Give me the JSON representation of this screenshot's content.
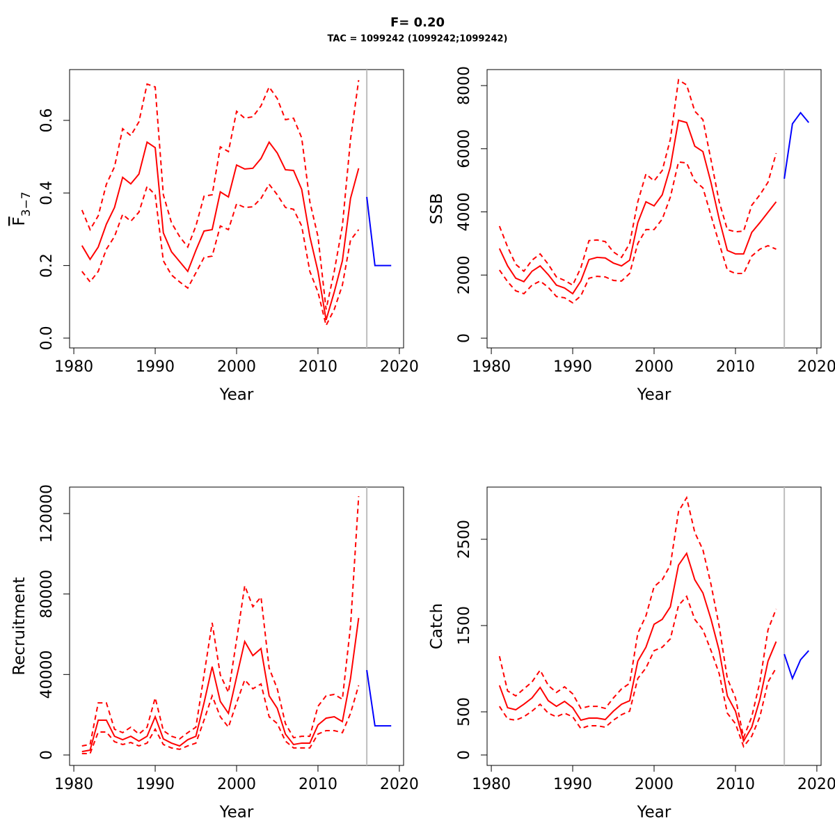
{
  "title": "F= 0.20",
  "subtitle": "TAC = 1099242 (1099242;1099242)",
  "chart_data": [
    {
      "type": "line",
      "xlabel": "Year",
      "ylabel": "F",
      "ylabel_subscript": "3−7",
      "xlim": [
        1979.48,
        2020.52
      ],
      "xticks": [
        1980,
        1990,
        2000,
        2010,
        2020
      ],
      "ylim": [
        -0.027,
        0.74
      ],
      "yticks": [
        {
          "value": 0,
          "label": "0.0"
        },
        0.2,
        0.4,
        0.6
      ],
      "x": [
        1981,
        1982,
        1983,
        1984,
        1985,
        1986,
        1987,
        1988,
        1989,
        1990,
        1991,
        1992,
        1993,
        1994,
        1995,
        1996,
        1997,
        1998,
        1999,
        2000,
        2001,
        2002,
        2003,
        2004,
        2005,
        2006,
        2007,
        2008,
        2009,
        2010,
        2011,
        2012,
        2013,
        2014,
        2015
      ],
      "series": [
        {
          "color": "#ff0000",
          "linestyle": "solid",
          "values": [
            0.255,
            0.217,
            0.251,
            0.314,
            0.36,
            0.443,
            0.425,
            0.452,
            0.54,
            0.525,
            0.29,
            0.238,
            0.211,
            0.184,
            0.242,
            0.295,
            0.299,
            0.403,
            0.389,
            0.477,
            0.466,
            0.468,
            0.495,
            0.54,
            0.51,
            0.464,
            0.462,
            0.41,
            0.28,
            0.184,
            0.05,
            0.127,
            0.213,
            0.385,
            0.468
          ]
        },
        {
          "color": "#ff0000",
          "linestyle": "dashed",
          "values": [
            0.353,
            0.299,
            0.337,
            0.424,
            0.472,
            0.577,
            0.558,
            0.596,
            0.7,
            0.692,
            0.395,
            0.318,
            0.28,
            0.251,
            0.309,
            0.391,
            0.395,
            0.527,
            0.514,
            0.625,
            0.606,
            0.61,
            0.64,
            0.692,
            0.66,
            0.602,
            0.606,
            0.552,
            0.376,
            0.28,
            0.079,
            0.184,
            0.309,
            0.548,
            0.711
          ]
        },
        {
          "color": "#ff0000",
          "linestyle": "dashed",
          "values": [
            0.184,
            0.155,
            0.184,
            0.245,
            0.28,
            0.341,
            0.322,
            0.347,
            0.418,
            0.395,
            0.213,
            0.174,
            0.155,
            0.138,
            0.18,
            0.222,
            0.226,
            0.309,
            0.299,
            0.37,
            0.36,
            0.362,
            0.385,
            0.424,
            0.395,
            0.36,
            0.355,
            0.309,
            0.184,
            0.127,
            0.035,
            0.079,
            0.146,
            0.27,
            0.299
          ]
        }
      ],
      "forecast": {
        "color": "#0000ff",
        "x": [
          2016,
          2017,
          2018,
          2019
        ],
        "values": [
          0.389,
          0.2,
          0.2,
          0.2
        ]
      },
      "vline": 2016,
      "vline_color": "#bebebe"
    },
    {
      "type": "line",
      "xlabel": "Year",
      "ylabel": "SSB",
      "xlim": [
        1979.48,
        2020.52
      ],
      "xticks": [
        1980,
        1990,
        2000,
        2010,
        2020
      ],
      "ylim": [
        -308,
        8507
      ],
      "yticks": [
        0,
        2000,
        4000,
        6000,
        8000
      ],
      "x": [
        1981,
        1982,
        1983,
        1984,
        1985,
        1986,
        1987,
        1988,
        1989,
        1990,
        1991,
        1992,
        1993,
        1994,
        1995,
        1996,
        1997,
        1998,
        1999,
        2000,
        2001,
        2002,
        2003,
        2004,
        2005,
        2006,
        2007,
        2008,
        2009,
        2010,
        2011,
        2012,
        2013,
        2014,
        2015
      ],
      "series": [
        {
          "color": "#ff0000",
          "linestyle": "solid",
          "values": [
            2840,
            2290,
            1900,
            1790,
            2120,
            2290,
            2010,
            1680,
            1590,
            1410,
            1810,
            2490,
            2560,
            2540,
            2380,
            2290,
            2470,
            3660,
            4320,
            4190,
            4540,
            5420,
            6900,
            6830,
            6080,
            5910,
            4920,
            3770,
            2780,
            2670,
            2670,
            3350,
            3660,
            3990,
            4320
          ]
        },
        {
          "color": "#ff0000",
          "linestyle": "dashed",
          "values": [
            3550,
            2890,
            2340,
            2120,
            2470,
            2670,
            2340,
            1940,
            1830,
            1680,
            2230,
            3090,
            3110,
            3060,
            2730,
            2560,
            3000,
            4320,
            5200,
            4980,
            5310,
            6300,
            8180,
            8020,
            7190,
            6920,
            5640,
            4320,
            3440,
            3370,
            3390,
            4210,
            4540,
            4940,
            5860
          ]
        },
        {
          "color": "#ff0000",
          "linestyle": "dashed",
          "values": [
            2160,
            1790,
            1500,
            1410,
            1680,
            1810,
            1610,
            1320,
            1280,
            1120,
            1340,
            1900,
            1960,
            1940,
            1830,
            1810,
            2050,
            3000,
            3440,
            3440,
            3770,
            4470,
            5580,
            5550,
            4980,
            4760,
            3880,
            3000,
            2160,
            2050,
            2050,
            2600,
            2820,
            2930,
            2820
          ]
        }
      ],
      "forecast": {
        "color": "#0000ff",
        "x": [
          2016,
          2017,
          2018,
          2019
        ],
        "values": [
          5050,
          6790,
          7140,
          6830
        ]
      },
      "vline": 2016,
      "vline_color": "#bebebe"
    },
    {
      "type": "line",
      "xlabel": "Year",
      "ylabel": "Recruitment",
      "xlim": [
        1979.48,
        2020.52
      ],
      "xticks": [
        1980,
        1990,
        2000,
        2010,
        2020
      ],
      "ylim": [
        -5187,
        133137
      ],
      "yticks": [
        0,
        40000,
        80000,
        120000
      ],
      "x": [
        1981,
        1982,
        1983,
        1984,
        1985,
        1986,
        1987,
        1988,
        1989,
        1990,
        1991,
        1992,
        1993,
        1994,
        1995,
        1996,
        1997,
        1998,
        1999,
        2000,
        2001,
        2002,
        2003,
        2004,
        2005,
        2006,
        2007,
        2008,
        2009,
        2010,
        2011,
        2012,
        2013,
        2014,
        2015
      ],
      "series": [
        {
          "color": "#ff0000",
          "linestyle": "solid",
          "values": [
            1700,
            2400,
            17300,
            17300,
            9300,
            7600,
            9300,
            6900,
            9300,
            19000,
            8000,
            5900,
            4500,
            7600,
            9300,
            25900,
            43900,
            26600,
            20700,
            38700,
            56400,
            49400,
            52900,
            29400,
            23200,
            10400,
            5200,
            5900,
            5900,
            14900,
            18300,
            19000,
            16600,
            38000,
            68100
          ]
        },
        {
          "color": "#ff0000",
          "linestyle": "dashed",
          "values": [
            4500,
            5200,
            25900,
            25900,
            12800,
            11100,
            13800,
            10400,
            13800,
            28400,
            12100,
            9300,
            8000,
            11100,
            13800,
            39800,
            65700,
            39800,
            31100,
            57100,
            84100,
            73700,
            78500,
            43200,
            32900,
            15600,
            8600,
            9300,
            9300,
            24200,
            29400,
            30100,
            27700,
            64000,
            128600
          ]
        },
        {
          "color": "#ff0000",
          "linestyle": "dashed",
          "values": [
            700,
            700,
            11400,
            11400,
            6600,
            5200,
            6200,
            4500,
            5900,
            12800,
            5200,
            3500,
            2800,
            4500,
            5900,
            17300,
            29400,
            19000,
            13800,
            25900,
            37300,
            32900,
            35300,
            19000,
            15600,
            6900,
            3500,
            3500,
            3500,
            10400,
            12100,
            12100,
            11100,
            20700,
            34600
          ]
        }
      ],
      "forecast": {
        "color": "#0000ff",
        "x": [
          2016,
          2017,
          2018,
          2019
        ],
        "values": [
          42200,
          14500,
          14500,
          14500
        ]
      },
      "vline": 2016,
      "vline_color": "#bebebe"
    },
    {
      "type": "line",
      "xlabel": "Year",
      "ylabel": "Catch",
      "xlim": [
        1979.48,
        2020.52
      ],
      "xticks": [
        1980,
        1990,
        2000,
        2010,
        2020
      ],
      "ylim": [
        -121,
        3105
      ],
      "yticks": [
        0,
        500,
        1500,
        2500
      ],
      "x": [
        1981,
        1982,
        1983,
        1984,
        1985,
        1986,
        1987,
        1988,
        1989,
        1990,
        1991,
        1992,
        1993,
        1994,
        1995,
        1996,
        1997,
        1998,
        1999,
        2000,
        2001,
        2002,
        2003,
        2004,
        2005,
        2006,
        2007,
        2008,
        2009,
        2010,
        2011,
        2012,
        2013,
        2014,
        2015
      ],
      "series": [
        {
          "color": "#ff0000",
          "linestyle": "solid",
          "values": [
            806,
            548,
            524,
            588,
            661,
            782,
            629,
            564,
            621,
            548,
            403,
            427,
            427,
            411,
            508,
            588,
            629,
            1088,
            1249,
            1515,
            1572,
            1717,
            2200,
            2337,
            2031,
            1878,
            1572,
            1209,
            685,
            508,
            161,
            322,
            645,
            1088,
            1314
          ]
        },
        {
          "color": "#ff0000",
          "linestyle": "dashed",
          "values": [
            1145,
            742,
            685,
            766,
            846,
            983,
            806,
            725,
            790,
            709,
            540,
            564,
            564,
            540,
            661,
            766,
            830,
            1411,
            1612,
            1951,
            2031,
            2200,
            2821,
            2982,
            2579,
            2378,
            1975,
            1491,
            887,
            661,
            202,
            443,
            846,
            1451,
            1693
          ]
        },
        {
          "color": "#ff0000",
          "linestyle": "dashed",
          "values": [
            564,
            419,
            403,
            443,
            508,
            588,
            484,
            443,
            484,
            443,
            306,
            339,
            339,
            322,
            403,
            467,
            508,
            887,
            1008,
            1209,
            1249,
            1346,
            1733,
            1838,
            1572,
            1451,
            1209,
            943,
            484,
            363,
            97,
            218,
            443,
            846,
            1008
          ]
        }
      ],
      "forecast": {
        "color": "#0000ff",
        "x": [
          2016,
          2017,
          2018,
          2019
        ],
        "values": [
          1169,
          887,
          1104,
          1209
        ]
      },
      "vline": 2016,
      "vline_color": "#bebebe"
    }
  ]
}
